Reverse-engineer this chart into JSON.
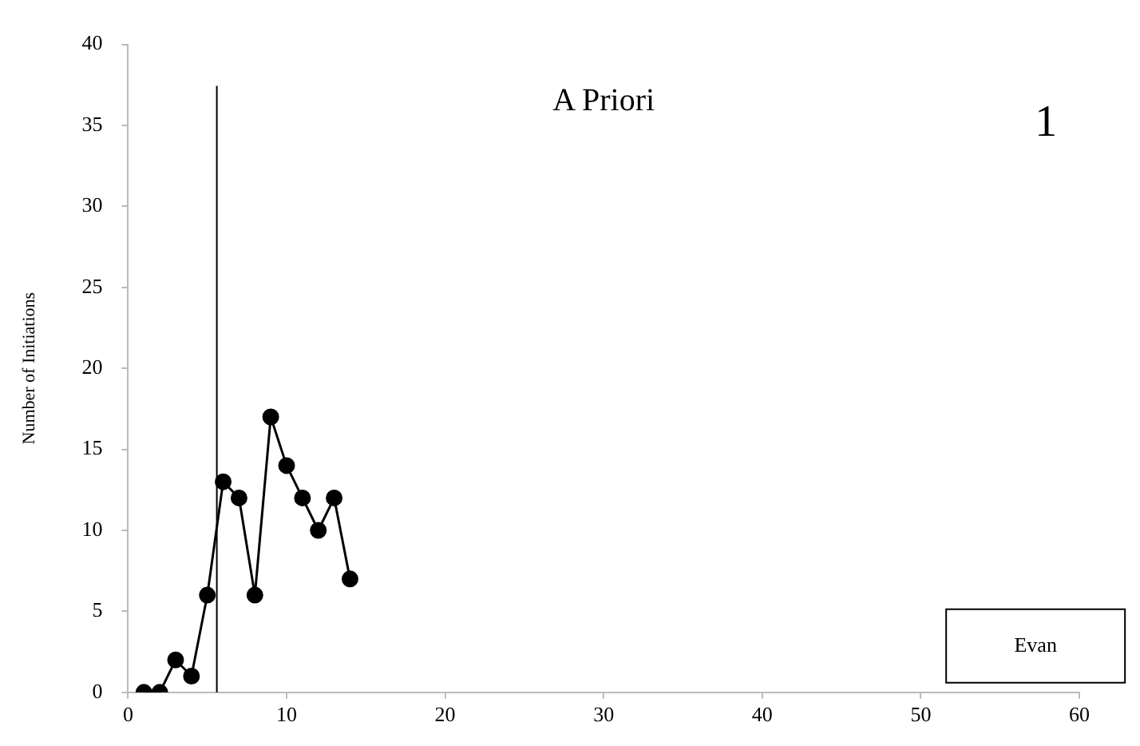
{
  "chart_data": {
    "type": "line",
    "ylabel": "Number of Initiations",
    "x": [
      1,
      2,
      3,
      4,
      5,
      6,
      7,
      8,
      9,
      10,
      11,
      12,
      13,
      14
    ],
    "values": [
      0,
      0,
      2,
      1,
      6,
      13,
      12,
      6,
      17,
      14,
      12,
      10,
      12,
      7
    ],
    "color": "#000000",
    "marker": "circle",
    "line_style": "solid",
    "xlim": [
      0,
      60
    ],
    "xticks": [
      0,
      10,
      20,
      30,
      40,
      50,
      60
    ],
    "ylim": [
      0,
      40
    ],
    "yticks": [
      0,
      5,
      10,
      15,
      20,
      25,
      30,
      35,
      40
    ],
    "grid": false,
    "legend": false,
    "ref_lines": [
      {
        "axis": "x",
        "value": 5.6,
        "color": "#000000"
      }
    ],
    "annotations": [
      "A Priori",
      "1",
      "Evan"
    ]
  }
}
